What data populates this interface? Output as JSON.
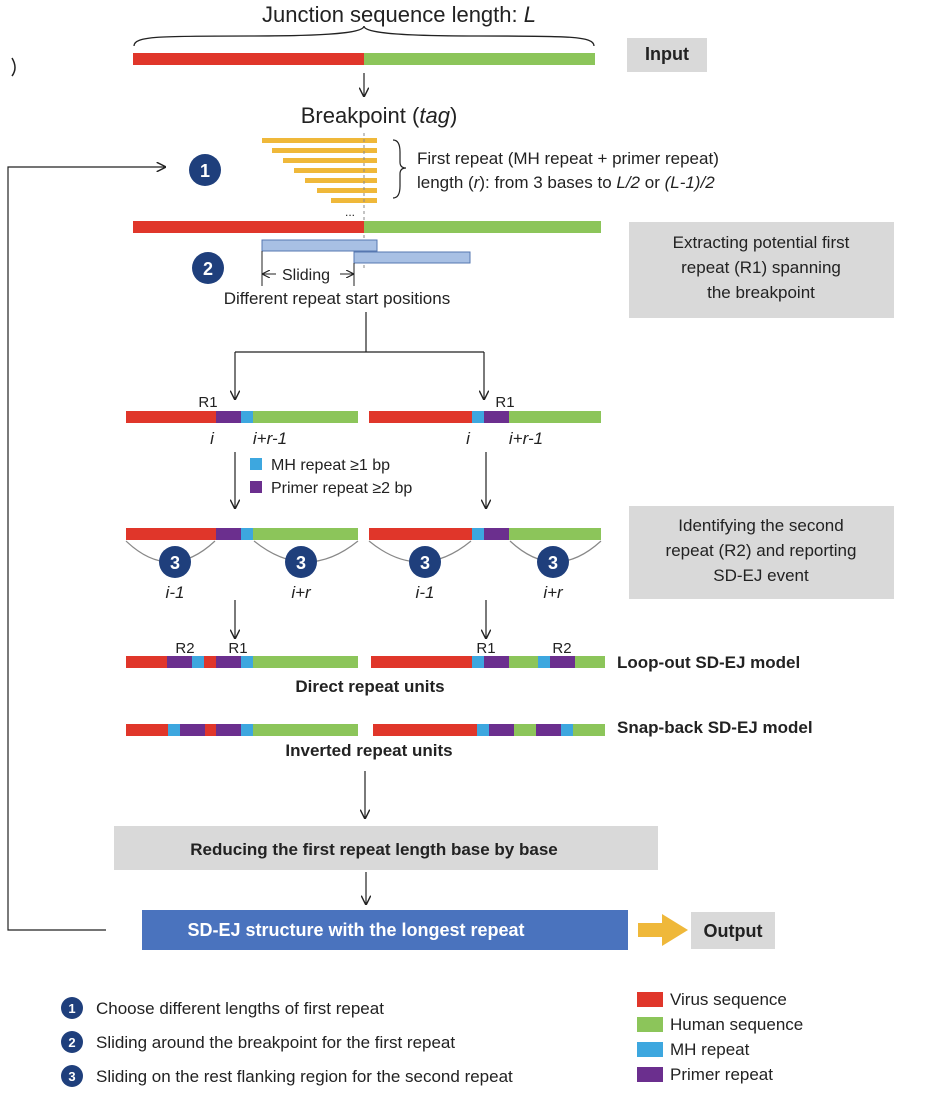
{
  "colors": {
    "virus": "#e0362a",
    "human": "#8cc55a",
    "mh": "#3da7df",
    "primer": "#6b2f8e",
    "first_repeat_bars": "#efb83a",
    "sliding_box": "#a8c0e4",
    "gray_box": "#d9d9d9",
    "blue_box": "#4a73be",
    "step_circle": "#1f3f7c",
    "output_arrow": "#efb83a"
  },
  "header": {
    "title_prefix": "Junction sequence length: ",
    "title_var": "L"
  },
  "boxes": {
    "input": "Input",
    "extract_lines": [
      "Extracting potential first",
      "repeat (R1) spanning",
      "the breakpoint"
    ],
    "identify_lines": [
      "Identifying the second",
      "repeat (R2) and reporting",
      "SD-EJ event"
    ],
    "reduce": "Reducing the first repeat length base by base",
    "structure": "SD-EJ structure with the longest repeat",
    "output": "Output"
  },
  "breakpoint": {
    "label": "Breakpoint (",
    "tag": "tag",
    "close": ")"
  },
  "first_repeat": {
    "line1": "First repeat (MH repeat + primer repeat)",
    "line2_a": "length (",
    "line2_r": "r",
    "line2_b": "): from 3 bases to ",
    "line2_l2": "L/2",
    "line2_or": " or ",
    "line2_l12": "(L-1)/2",
    "dots": "..."
  },
  "sliding": {
    "label": "Sliding",
    "positions": "Different repeat start positions"
  },
  "steps": {
    "one": "1",
    "two": "2",
    "three": "3"
  },
  "labels": {
    "r1": "R1",
    "r2": "R2",
    "i": "i",
    "ir1": "i+r-1",
    "im1": "i-1",
    "ir": "i+r",
    "mh_legend": "MH repeat ≥1 bp",
    "primer_legend": "Primer repeat ≥2 bp"
  },
  "models": {
    "loop_out": "Loop-out SD-EJ model",
    "snap_back": "Snap-back SD-EJ model",
    "direct": "Direct repeat units",
    "inverted": "Inverted repeat units"
  },
  "notes": [
    {
      "num": "1",
      "text": "Choose different lengths of first repeat"
    },
    {
      "num": "2",
      "text": "Sliding around the breakpoint for the first repeat"
    },
    {
      "num": "3",
      "text": "Sliding on the rest flanking region for the second repeat"
    }
  ],
  "legend": [
    {
      "label": "Virus sequence",
      "color": "#e0362a"
    },
    {
      "label": "Human sequence",
      "color": "#8cc55a"
    },
    {
      "label": "MH repeat",
      "color": "#3da7df"
    },
    {
      "label": "Primer repeat",
      "color": "#6b2f8e"
    }
  ]
}
